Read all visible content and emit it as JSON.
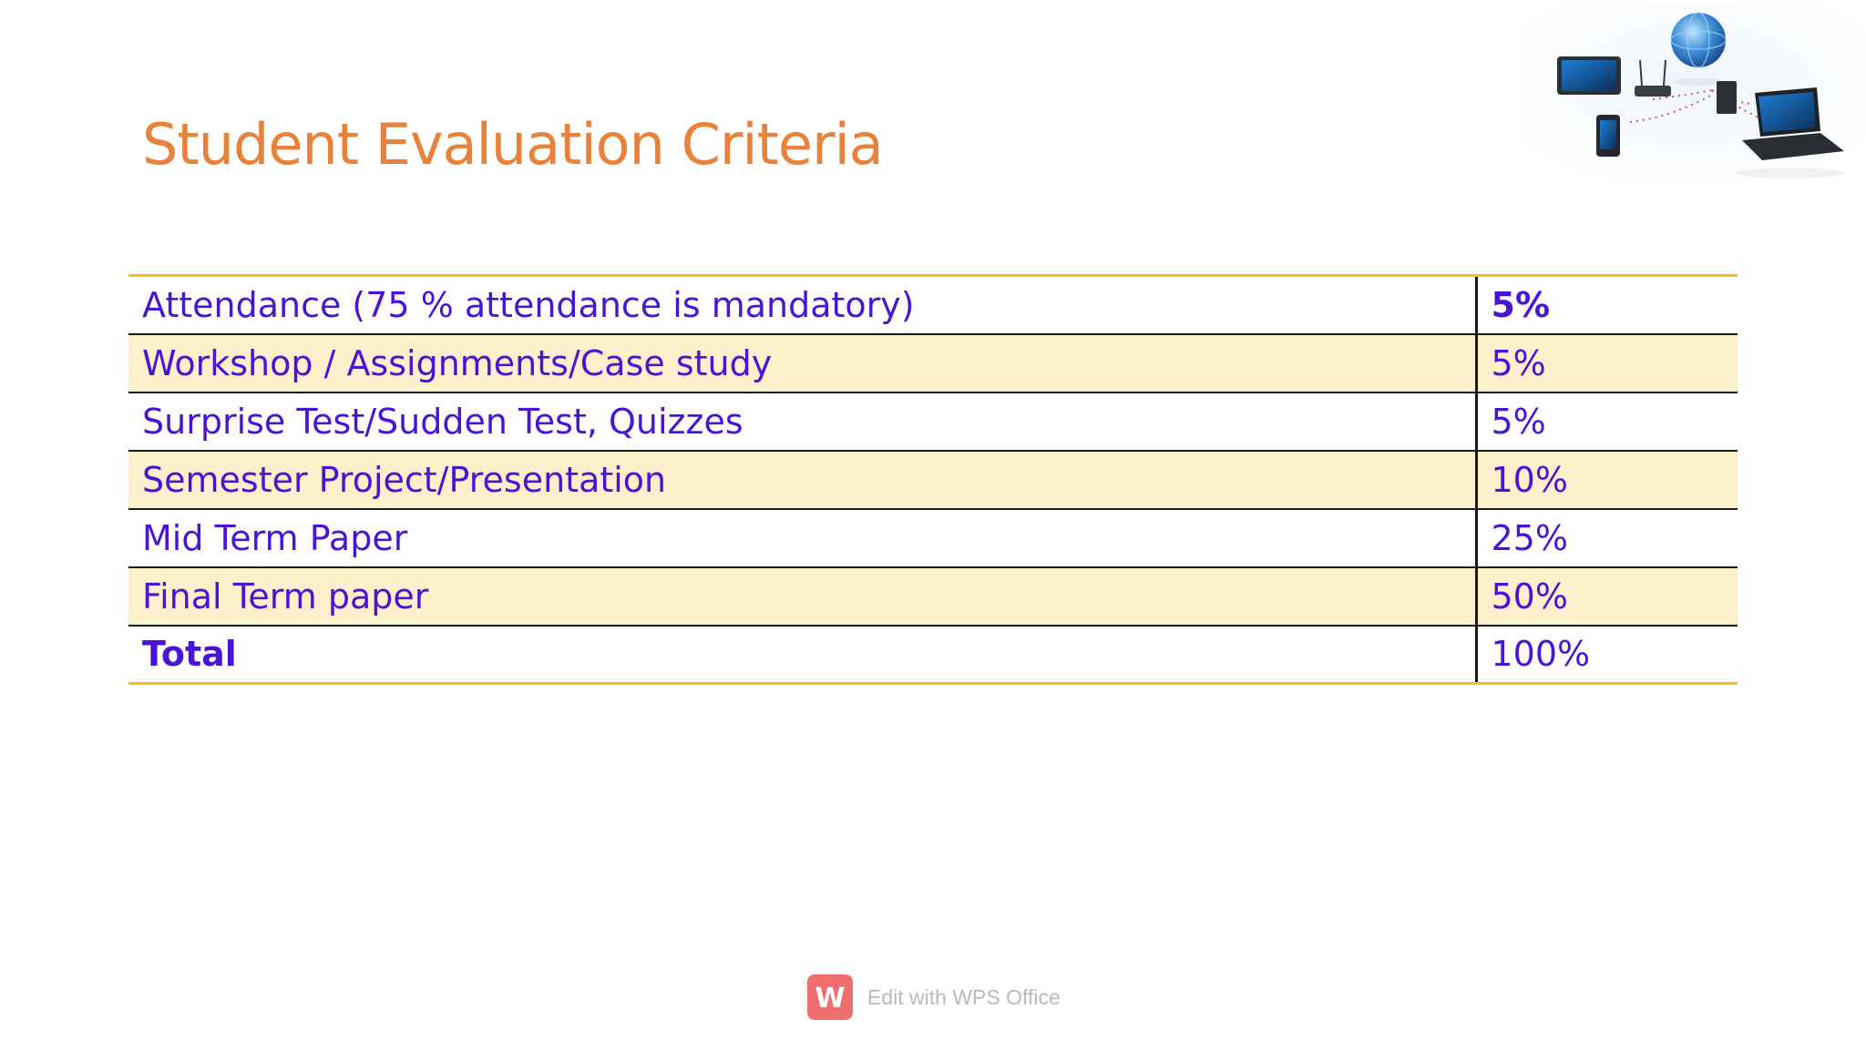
{
  "slide": {
    "title": "Student Evaluation Criteria"
  },
  "table": {
    "rows": [
      {
        "label": "Attendance (75 % attendance is mandatory)",
        "value": "5%"
      },
      {
        "label": "Workshop / Assignments/Case study",
        "value": "5%"
      },
      {
        "label": "Surprise Test/Sudden Test, Quizzes",
        "value": "5%"
      },
      {
        "label": "Semester Project/Presentation",
        "value": "10%"
      },
      {
        "label": "Mid Term Paper",
        "value": "25%"
      },
      {
        "label": "Final Term paper",
        "value": "50%"
      },
      {
        "label": "Total",
        "value": "100%"
      }
    ]
  },
  "illustration": {
    "icon": "network-devices-icon"
  },
  "watermark": {
    "text": "Edit with WPS Office",
    "logo_letter": "W",
    "icon": "wps-office-logo-icon"
  },
  "colors": {
    "title": "#e8823a",
    "table_text": "#4a14d6",
    "row_highlight": "#fdf0cc",
    "table_border_accent": "#f0c419",
    "watermark_logo": "#ef6f6f"
  }
}
